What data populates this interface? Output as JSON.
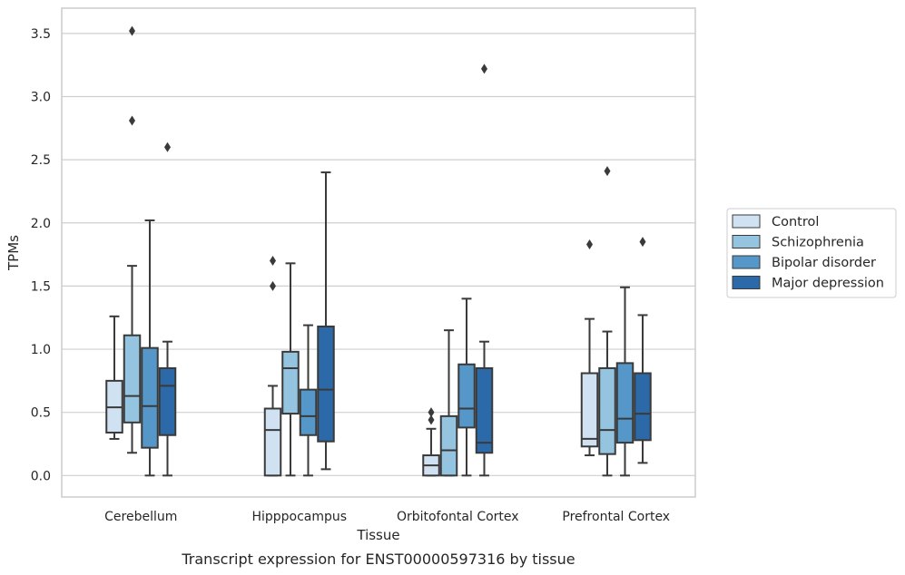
{
  "caption": "Transcript expression for ENST00000597316 by tissue",
  "chart_data": {
    "type": "boxplot",
    "xlabel": "Tissue",
    "ylabel": "TPMs",
    "ylim": [
      -0.17,
      3.7
    ],
    "yticks": [
      0.0,
      0.5,
      1.0,
      1.5,
      2.0,
      2.5,
      3.0,
      3.5
    ],
    "ytick_labels": [
      "0.0",
      "0.5",
      "1.0",
      "1.5",
      "2.0",
      "2.5",
      "3.0",
      "3.5"
    ],
    "grid": "horizontal",
    "legend_position": "right",
    "categories": [
      "Cerebellum",
      "Hipppocampus",
      "Orbitofontal Cortex",
      "Prefrontal Cortex"
    ],
    "series": [
      {
        "name": "Control",
        "color": "#d0e1f2",
        "boxes": [
          {
            "whisker_low": 0.29,
            "q1": 0.34,
            "median": 0.54,
            "q3": 0.75,
            "whisker_high": 1.26,
            "outliers": []
          },
          {
            "whisker_low": 0.0,
            "q1": 0.0,
            "median": 0.36,
            "q3": 0.53,
            "whisker_high": 0.71,
            "outliers": [
              1.5,
              1.7
            ]
          },
          {
            "whisker_low": 0.0,
            "q1": 0.0,
            "median": 0.08,
            "q3": 0.16,
            "whisker_high": 0.37,
            "outliers": [
              0.44,
              0.5
            ]
          },
          {
            "whisker_low": 0.16,
            "q1": 0.23,
            "median": 0.29,
            "q3": 0.81,
            "whisker_high": 1.24,
            "outliers": [
              1.83
            ]
          }
        ]
      },
      {
        "name": "Schizophrenia",
        "color": "#94c4df",
        "boxes": [
          {
            "whisker_low": 0.18,
            "q1": 0.42,
            "median": 0.63,
            "q3": 1.11,
            "whisker_high": 1.66,
            "outliers": [
              2.81,
              3.52
            ]
          },
          {
            "whisker_low": 0.0,
            "q1": 0.49,
            "median": 0.85,
            "q3": 0.98,
            "whisker_high": 1.68,
            "outliers": []
          },
          {
            "whisker_low": 0.0,
            "q1": 0.0,
            "median": 0.2,
            "q3": 0.47,
            "whisker_high": 1.15,
            "outliers": []
          },
          {
            "whisker_low": 0.0,
            "q1": 0.17,
            "median": 0.36,
            "q3": 0.85,
            "whisker_high": 1.14,
            "outliers": [
              2.41
            ]
          }
        ]
      },
      {
        "name": "Bipolar disorder",
        "color": "#5597c9",
        "boxes": [
          {
            "whisker_low": 0.0,
            "q1": 0.22,
            "median": 0.55,
            "q3": 1.01,
            "whisker_high": 2.02,
            "outliers": []
          },
          {
            "whisker_low": 0.0,
            "q1": 0.32,
            "median": 0.47,
            "q3": 0.68,
            "whisker_high": 1.19,
            "outliers": []
          },
          {
            "whisker_low": 0.0,
            "q1": 0.38,
            "median": 0.53,
            "q3": 0.88,
            "whisker_high": 1.4,
            "outliers": []
          },
          {
            "whisker_low": 0.0,
            "q1": 0.26,
            "median": 0.45,
            "q3": 0.89,
            "whisker_high": 1.49,
            "outliers": []
          }
        ]
      },
      {
        "name": "Major depression",
        "color": "#2b69a8",
        "boxes": [
          {
            "whisker_low": 0.0,
            "q1": 0.32,
            "median": 0.71,
            "q3": 0.85,
            "whisker_high": 1.06,
            "outliers": [
              2.6
            ]
          },
          {
            "whisker_low": 0.05,
            "q1": 0.27,
            "median": 0.68,
            "q3": 1.18,
            "whisker_high": 2.4,
            "outliers": []
          },
          {
            "whisker_low": 0.0,
            "q1": 0.18,
            "median": 0.26,
            "q3": 0.85,
            "whisker_high": 1.06,
            "outliers": [
              3.22
            ]
          },
          {
            "whisker_low": 0.1,
            "q1": 0.28,
            "median": 0.49,
            "q3": 0.81,
            "whisker_high": 1.27,
            "outliers": [
              1.85
            ]
          }
        ]
      }
    ]
  }
}
